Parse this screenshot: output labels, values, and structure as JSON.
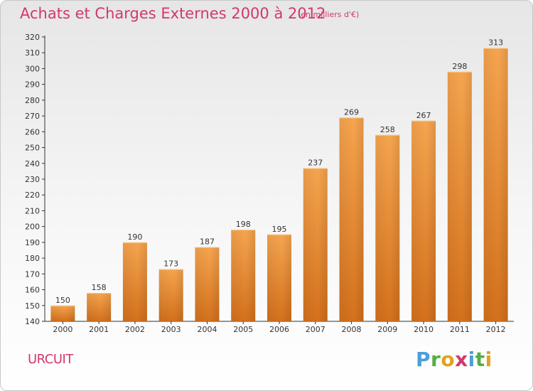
{
  "title": "Achats et Charges Externes 2000 à 2012",
  "subtitle": "(en milliers d'€)",
  "commune": "URCUIT",
  "logo": {
    "letters": [
      "P",
      "r",
      "o",
      "x",
      "i",
      "t",
      "i"
    ],
    "colors": [
      "#4c9fd8",
      "#56ad42",
      "#e2a21e",
      "#d2386c",
      "#4c9fd8",
      "#56ad42",
      "#e2a21e"
    ]
  },
  "colors": {
    "bar_top": "#f6a54f",
    "bar_bottom": "#d4711c",
    "text_accent": "#d2386c"
  },
  "chart_data": {
    "type": "bar",
    "title": "Achats et Charges Externes 2000 à 2012",
    "subtitle": "(en milliers d'€)",
    "xlabel": "",
    "ylabel": "",
    "categories": [
      "2000",
      "2001",
      "2002",
      "2003",
      "2004",
      "2005",
      "2006",
      "2007",
      "2008",
      "2009",
      "2010",
      "2011",
      "2012"
    ],
    "values": [
      150,
      158,
      190,
      173,
      187,
      198,
      195,
      237,
      269,
      258,
      267,
      298,
      313
    ],
    "ylim": [
      140,
      320
    ],
    "yticks": [
      140,
      150,
      160,
      170,
      180,
      190,
      200,
      210,
      220,
      230,
      240,
      250,
      260,
      270,
      280,
      290,
      300,
      310,
      320
    ],
    "grid": false,
    "data_labels": true
  }
}
